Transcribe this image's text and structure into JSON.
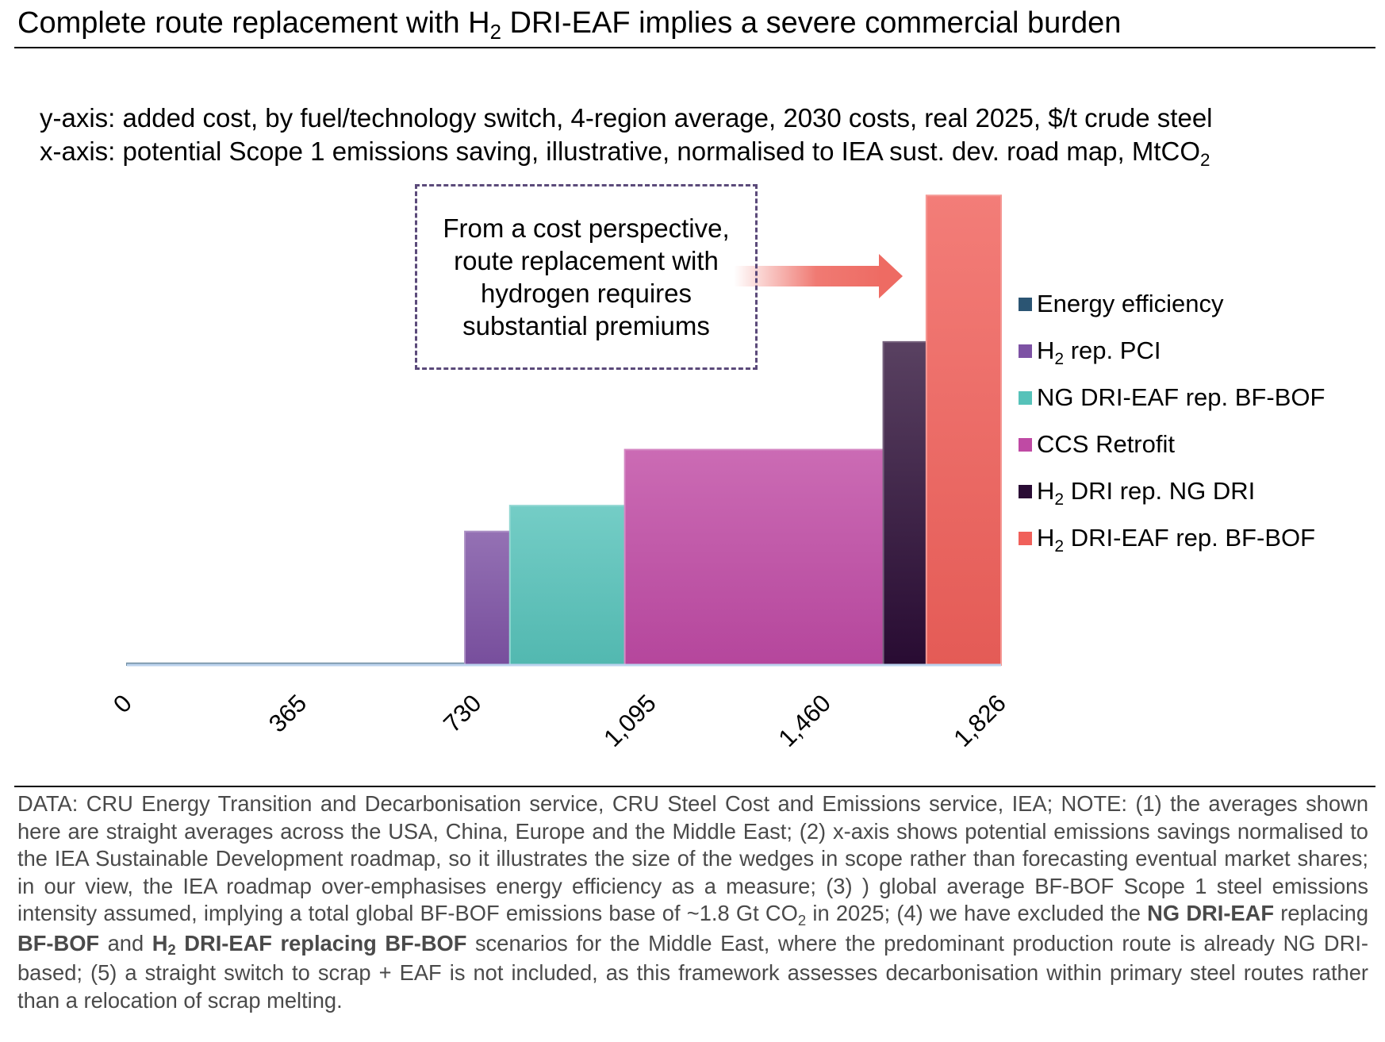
{
  "title": {
    "part1": "Complete route replacement with H",
    "sub": "2",
    "part2": " DRI-EAF implies a severe commercial burden"
  },
  "axis_descriptions": {
    "y": "y-axis: added cost, by fuel/technology switch, 4-region average, 2030 costs, real 2025, $/t crude steel",
    "x_part1": "x-axis: potential Scope 1 emissions saving, illustrative, normalised to IEA sust. dev. road map, MtCO",
    "x_sub": "2"
  },
  "callout": {
    "text": "From a cost perspective, route replacement with hydrogen requires substantial premiums"
  },
  "colors": {
    "energy_efficiency": "#2b5573",
    "h2_rep_pci": "#7d52a4",
    "ng_dri_eaf": "#56c2b9",
    "ccs_retrofit": "#bf4aa4",
    "h2_dri_rep_ng_dri": "#2a0c35",
    "h2_dri_eaf_rep_bf_bof": "#f0605a",
    "arrow": "#ee6b63",
    "baseline": "#bcd3ee"
  },
  "chart_data": {
    "type": "bar",
    "subtype": "variable-width cost curve (MACC)",
    "x_axis": {
      "ticks": [
        "0",
        "365",
        "730",
        "1,095",
        "1,460",
        "1,826"
      ],
      "tick_values": [
        0,
        365,
        730,
        1095,
        1460,
        1826
      ],
      "range": [
        0,
        1826
      ],
      "tick_rotation_deg": -45
    },
    "y_axis": {
      "visible": false,
      "units": "$/t crude steel"
    },
    "grid": false,
    "legend_position": "right",
    "series": [
      {
        "key": "energy_efficiency",
        "name_main": "Energy efficiency",
        "name_sub": "",
        "name_rest": "",
        "x_start": 0,
        "x_end": 706,
        "value": 2
      },
      {
        "key": "h2_rep_pci",
        "name_main": "H",
        "name_sub": "2",
        "name_rest": " rep. PCI",
        "x_start": 706,
        "x_end": 800,
        "value": 155
      },
      {
        "key": "ng_dri_eaf",
        "name_main": "NG DRI-EAF rep. BF-BOF",
        "name_sub": "",
        "name_rest": "",
        "x_start": 800,
        "x_end": 1040,
        "value": 185
      },
      {
        "key": "ccs_retrofit",
        "name_main": "CCS Retrofit",
        "name_sub": "",
        "name_rest": "",
        "x_start": 1040,
        "x_end": 1580,
        "value": 250
      },
      {
        "key": "h2_dri_rep_ng_dri",
        "name_main": "H",
        "name_sub": "2",
        "name_rest": " DRI rep. NG DRI",
        "x_start": 1580,
        "x_end": 1670,
        "value": 375
      },
      {
        "key": "h2_dri_eaf_rep_bf_bof",
        "name_main": "H",
        "name_sub": "2",
        "name_rest": " DRI-EAF rep. BF-BOF",
        "x_start": 1670,
        "x_end": 1826,
        "value": 545
      }
    ]
  },
  "footnote": {
    "s1": "DATA: CRU Energy Transition and Decarbonisation service, CRU Steel Cost and Emissions service, IEA; NOTE: (1) the averages shown here are straight averages across the USA, China, Europe and the Middle East; (2) x-axis shows potential emissions savings normalised to the IEA Sustainable Development roadmap, so it illustrates the size of the wedges in scope rather than forecasting eventual market shares; in our view, the IEA roadmap over-emphasises energy efficiency as a measure; (3) ) global average BF-BOF Scope 1 steel emissions intensity assumed, implying a total global BF-BOF emissions base of ~1.8 Gt CO",
    "s1_sub": "2",
    "s2": " in 2025; (4) we have excluded the ",
    "b1": "NG DRI-EAF",
    "s3": " replacing ",
    "b2": "BF-BOF",
    "s4": " and ",
    "b3a": "H",
    "b3_sub": "2",
    "b3b": " DRI-EAF replacing BF-BOF",
    "s5": " scenarios for the Middle East, where the predominant production route is already NG DRI-based; (5) a straight switch to scrap + EAF is not included, as this framework assesses decarbonisation within primary steel routes rather than a relocation of scrap melting."
  }
}
